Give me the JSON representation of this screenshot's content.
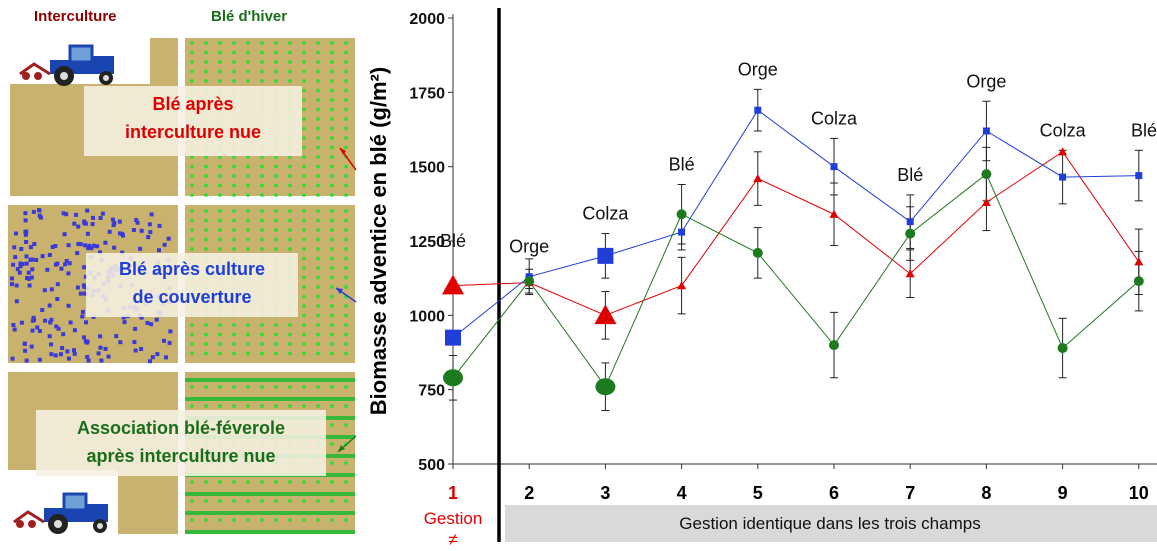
{
  "left_panel": {
    "col_interculture": "Interculture",
    "col_ble_hiver": "Blé d'hiver",
    "box1": [
      "Blé après",
      "interculture nue"
    ],
    "box2": [
      "Blé après culture",
      "de couverture"
    ],
    "box3": [
      "Association blé-féverole",
      "après interculture nue"
    ]
  },
  "colors": {
    "soil": "#c8b26e",
    "plant_green": "#33dd33",
    "cover_blue": "#3a3ad8",
    "red": "#e00000",
    "blue": "#1f3fd8",
    "green": "#1e7a1e",
    "dark_red": "#8b0000",
    "dark_green": "#1a6e1a",
    "band_gray": "#d9d9d9"
  },
  "chart_data": {
    "type": "line",
    "ylabel": "Biomasse adventice en blé (g/m²)",
    "ylim": [
      500,
      2000
    ],
    "yticks": [
      500,
      750,
      1000,
      1250,
      1500,
      1750,
      2000
    ],
    "x": [
      1,
      2,
      3,
      4,
      5,
      6,
      7,
      8,
      9,
      10
    ],
    "xtick_labels": [
      "1",
      "2",
      "3",
      "4",
      "5",
      "6",
      "7",
      "8",
      "9",
      "10"
    ],
    "crops": [
      "Blé",
      "Orge",
      "Colza",
      "Blé",
      "Orge",
      "Colza",
      "Blé",
      "Orge",
      "Colza",
      "Blé"
    ],
    "x_annotation_1": [
      "Gestion",
      "≠"
    ],
    "band_label": "Gestion identique dans les trois champs",
    "series": [
      {
        "color": "red",
        "marker": "triangle",
        "values": [
          1100,
          1110,
          1000,
          1100,
          1460,
          1340,
          1140,
          1380,
          1550,
          1180
        ],
        "err": [
          0,
          20,
          80,
          95,
          90,
          105,
          80,
          95,
          0,
          110
        ]
      },
      {
        "color": "blue",
        "marker": "square",
        "values": [
          925,
          1130,
          1200,
          1280,
          1690,
          1500,
          1315,
          1620,
          1465,
          1470
        ],
        "err": [
          0,
          60,
          75,
          60,
          70,
          95,
          90,
          100,
          90,
          85
        ]
      },
      {
        "color": "green",
        "marker": "circle",
        "values": [
          790,
          1115,
          760,
          1340,
          1210,
          900,
          1275,
          1475,
          890,
          1115
        ],
        "err": [
          75,
          40,
          80,
          100,
          85,
          110,
          90,
          90,
          100,
          100
        ]
      }
    ]
  }
}
